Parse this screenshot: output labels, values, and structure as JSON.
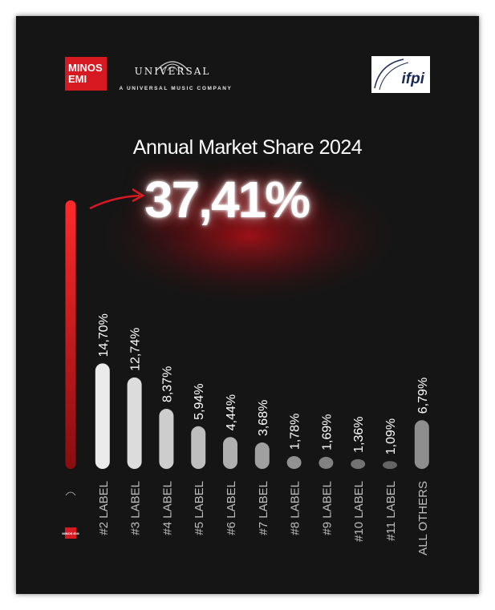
{
  "header": {
    "minos_logo": "MINOS EMI",
    "universal_logo": "UNIVERSAL",
    "universal_tagline": "A UNIVERSAL MUSIC COMPANY",
    "ifpi_logo": "ifpi"
  },
  "title": "Annual Market Share 2024",
  "highlight_value": "37,41%",
  "colors": {
    "accent": "#d71921",
    "background": "#141414",
    "bar": "#e6e6e6"
  },
  "chart_data": {
    "type": "bar",
    "title": "Annual Market Share 2024",
    "categories": [
      "MINOS EMI",
      "#2 LABEL",
      "#3 LABEL",
      "#4 LABEL",
      "#5 LABEL",
      "#6 LABEL",
      "#7 LABEL",
      "#8 LABEL",
      "#9 LABEL",
      "#10 LABEL",
      "#11 LABEL",
      "ALL OTHERS"
    ],
    "values": [
      37.41,
      14.7,
      12.74,
      8.37,
      5.94,
      4.44,
      3.68,
      1.78,
      1.69,
      1.36,
      1.09,
      6.79
    ],
    "value_labels": [
      "37,41%",
      "14,70%",
      "12,74%",
      "8,37%",
      "5,94%",
      "4,44%",
      "3,68%",
      "1,78%",
      "1,69%",
      "1,36%",
      "1,09%",
      "6,79%"
    ],
    "unit": "%",
    "ylim": [
      0,
      37.41
    ],
    "grid": false,
    "legend": "none"
  }
}
